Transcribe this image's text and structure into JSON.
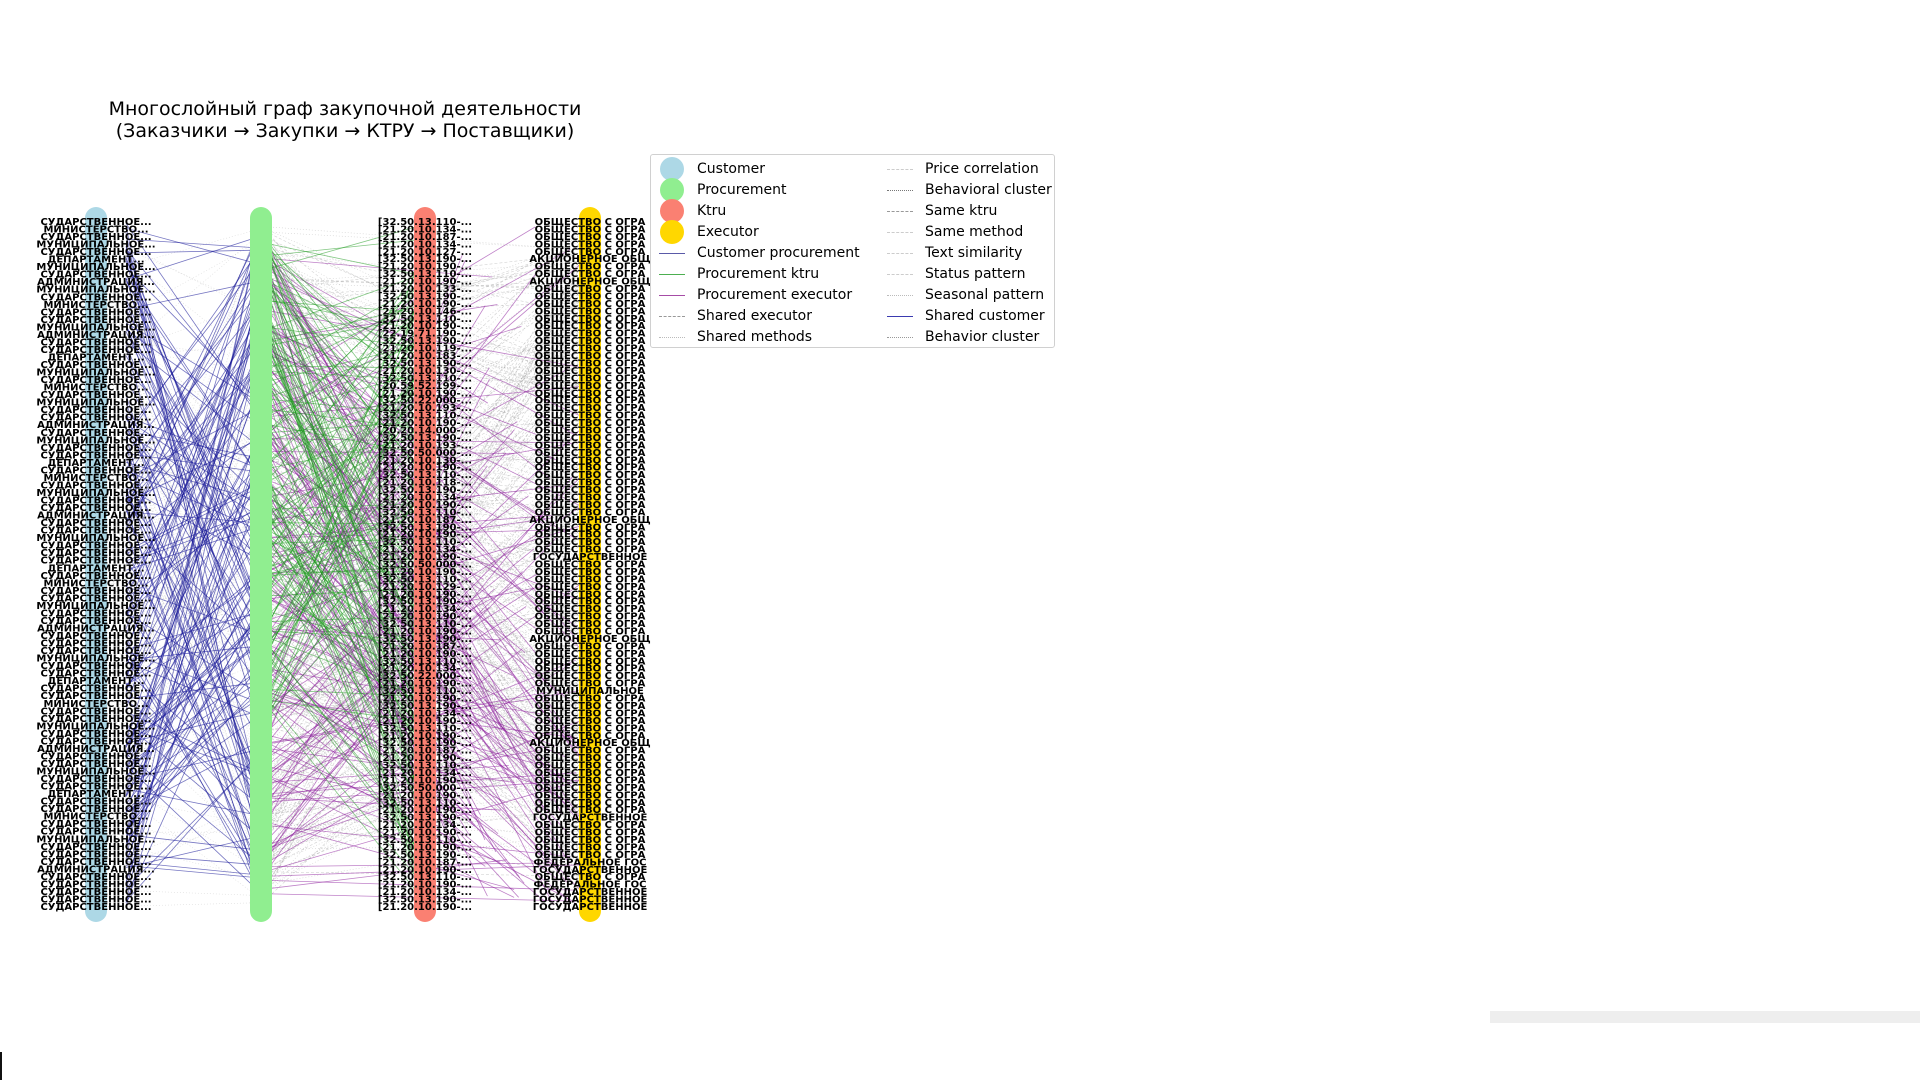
{
  "title": {
    "line1": "Многослойный граф закупочной деятельности",
    "line2": "(Заказчики → Закупки → КТРУ → Поставщики)"
  },
  "colors": {
    "customer": "#add8e6",
    "procurement": "#90ee90",
    "ktru": "#fa8072",
    "executor": "#ffd700",
    "customer_edge": "#1a1a9a",
    "ktru_edge": "#1f9a1f",
    "executor_edge": "#8b1a9a",
    "similarity_edge": "#9a9a9a"
  },
  "legend": [
    {
      "label": "Customer",
      "kind": "dot",
      "color": "#add8e6"
    },
    {
      "label": "Procurement",
      "kind": "dot",
      "color": "#90ee90"
    },
    {
      "label": "Ktru",
      "kind": "dot",
      "color": "#fa8072"
    },
    {
      "label": "Executor",
      "kind": "dot",
      "color": "#ffd700"
    },
    {
      "label": "Customer procurement",
      "kind": "line",
      "color": "#5a5aa8",
      "style": "solid"
    },
    {
      "label": "Procurement ktru",
      "kind": "line",
      "color": "#4caf50",
      "style": "solid"
    },
    {
      "label": "Procurement executor",
      "kind": "line",
      "color": "#a64ca6",
      "style": "solid"
    },
    {
      "label": "Shared executor",
      "kind": "line",
      "color": "#999999",
      "style": "dashed"
    },
    {
      "label": "Shared methods",
      "kind": "line",
      "color": "#bbbbbb",
      "style": "dotted"
    },
    {
      "label": "Price correlation",
      "kind": "line",
      "color": "#cccccc",
      "style": "dashed"
    },
    {
      "label": "Behavioral cluster",
      "kind": "line",
      "color": "#777777",
      "style": "dotted"
    },
    {
      "label": "Same ktru",
      "kind": "line",
      "color": "#999999",
      "style": "dashed"
    },
    {
      "label": "Same method",
      "kind": "line",
      "color": "#cccccc",
      "style": "dashed"
    },
    {
      "label": "Text similarity",
      "kind": "line",
      "color": "#cccccc",
      "style": "dashed"
    },
    {
      "label": "Status pattern",
      "kind": "line",
      "color": "#cccccc",
      "style": "dashed"
    },
    {
      "label": "Seasonal pattern",
      "kind": "line",
      "color": "#bbbbbb",
      "style": "dotted"
    },
    {
      "label": "Shared customer",
      "kind": "line",
      "color": "#3a3ab0",
      "style": "solid"
    },
    {
      "label": "Behavior cluster",
      "kind": "line",
      "color": "#999999",
      "style": "dotted"
    }
  ],
  "customer_labels": [
    "СУДАРСТВЕННОЕ...",
    "МИНИСТЕРСТВО...",
    "СУДАРСТВЕННОЕ...",
    "МУНИЦИПАЛЬНОЕ...",
    "СУДАРСТВЕННОЕ...",
    "ДЕПАРТАМЕНТ...",
    "МУНИЦИПАЛЬНОЕ...",
    "СУДАРСТВЕННОЕ...",
    "АДМИНИСТРАЦИЯ...",
    "МУНИЦИПАЛЬНОЕ...",
    "СУДАРСТВЕННОЕ...",
    "МИНИСТЕРСТВО...",
    "СУДАРСТВЕННОЕ...",
    "СУДАРСТВЕННОЕ...",
    "МУНИЦИПАЛЬНОЕ...",
    "АДМИНИСТРАЦИЯ...",
    "СУДАРСТВЕННОЕ...",
    "СУДАРСТВЕННОЕ...",
    "ДЕПАРТАМЕНТ...",
    "СУДАРСТВЕННОЕ...",
    "МУНИЦИПАЛЬНОЕ...",
    "СУДАРСТВЕННОЕ...",
    "МИНИСТЕРСТВО...",
    "СУДАРСТВЕННОЕ...",
    "МУНИЦИПАЛЬНОЕ...",
    "СУДАРСТВЕННОЕ...",
    "СУДАРСТВЕННОЕ...",
    "АДМИНИСТРАЦИЯ...",
    "СУДАРСТВЕННОЕ...",
    "МУНИЦИПАЛЬНОЕ...",
    "СУДАРСТВЕННОЕ...",
    "СУДАРСТВЕННОЕ...",
    "ДЕПАРТАМЕНТ...",
    "СУДАРСТВЕННОЕ...",
    "МИНИСТЕРСТВО...",
    "СУДАРСТВЕННОЕ...",
    "МУНИЦИПАЛЬНОЕ...",
    "СУДАРСТВЕННОЕ...",
    "СУДАРСТВЕННОЕ...",
    "АДМИНИСТРАЦИЯ...",
    "СУДАРСТВЕННОЕ...",
    "СУДАРСТВЕННОЕ...",
    "МУНИЦИПАЛЬНОЕ...",
    "СУДАРСТВЕННОЕ...",
    "СУДАРСТВЕННОЕ...",
    "СУДАРСТВЕННОЕ...",
    "ДЕПАРТАМЕНТ...",
    "СУДАРСТВЕННОЕ...",
    "МИНИСТЕРСТВО...",
    "СУДАРСТВЕННОЕ...",
    "СУДАРСТВЕННОЕ...",
    "МУНИЦИПАЛЬНОЕ...",
    "СУДАРСТВЕННОЕ...",
    "СУДАРСТВЕННОЕ...",
    "АДМИНИСТРАЦИЯ...",
    "СУДАРСТВЕННОЕ...",
    "СУДАРСТВЕННОЕ...",
    "СУДАРСТВЕННОЕ...",
    "МУНИЦИПАЛЬНОЕ...",
    "СУДАРСТВЕННОЕ...",
    "СУДАРСТВЕННОЕ...",
    "ДЕПАРТАМЕНТ...",
    "СУДАРСТВЕННОЕ...",
    "СУДАРСТВЕННОЕ...",
    "МИНИСТЕРСТВО...",
    "СУДАРСТВЕННОЕ...",
    "СУДАРСТВЕННОЕ...",
    "МУНИЦИПАЛЬНОЕ...",
    "СУДАРСТВЕННОЕ...",
    "СУДАРСТВЕННОЕ...",
    "АДМИНИСТРАЦИЯ...",
    "СУДАРСТВЕННОЕ...",
    "СУДАРСТВЕННОЕ...",
    "МУНИЦИПАЛЬНОЕ...",
    "СУДАРСТВЕННОЕ...",
    "СУДАРСТВЕННОЕ...",
    "ДЕПАРТАМЕНТ...",
    "СУДАРСТВЕННОЕ...",
    "СУДАРСТВЕННОЕ...",
    "МИНИСТЕРСТВО...",
    "СУДАРСТВЕННОЕ...",
    "СУДАРСТВЕННОЕ...",
    "МУНИЦИПАЛЬНОЕ...",
    "СУДАРСТВЕННОЕ...",
    "СУДАРСТВЕННОЕ...",
    "СУДАРСТВЕННОЕ...",
    "АДМИНИСТРАЦИЯ...",
    "СУДАРСТВЕННОЕ...",
    "СУДАРСТВЕННОЕ...",
    "СУДАРСТВЕННОЕ...",
    "СУДАРСТВЕННОЕ...",
    "СУДАРСТВЕННОЕ..."
  ],
  "ktru_labels": [
    "[32.50.13.110-...",
    "[21.20.10.134-...",
    "[21.20.10.187-...",
    "[21.20.10.134-...",
    "[21.20.10.127-...",
    "[32.50.13.190-...",
    "[21.20.10.190-...",
    "[32.50.13.110-...",
    "[21.20.10.190-...",
    "[21.20.10.133-...",
    "[32.50.13.190-...",
    "[21.20.10.190-...",
    "[21.20.10.146-...",
    "[32.50.13.110-...",
    "[21.20.10.190-...",
    "[22.19.71.190-...",
    "[32.50.13.190-...",
    "[21.20.10.119-...",
    "[21.20.10.183-...",
    "[32.50.13.190-...",
    "[21.20.10.130-...",
    "[32.50.13.110-...",
    "[20.59.52.199-...",
    "[21.20.10.190-...",
    "[32.50.22.000-...",
    "[21.20.10.193-...",
    "[32.50.13.110-...",
    "[21.20.10.190-...",
    "[20.20.14.000-...",
    "[32.50.13.190-...",
    "[21.20.10.193-...",
    "[32.50.50.000-...",
    "[21.20.10.130-...",
    "[21.20.10.190-...",
    "[32.50.13.110-...",
    "[21.20.10.118-...",
    "[32.50.13.190-...",
    "[21.20.10.134-...",
    "[21.20.10.190-...",
    "[32.50.13.110-...",
    "[21.20.10.187-...",
    "[32.50.13.190-...",
    "[21.20.10.190-...",
    "[32.50.13.110-...",
    "[21.20.10.134-...",
    "[21.20.10.190-...",
    "[32.50.50.000-...",
    "[21.20.10.190-...",
    "[32.50.13.110-...",
    "[21.20.10.129-...",
    "[21.20.10.190-...",
    "[32.50.13.190-...",
    "[21.20.10.134-...",
    "[21.20.10.190-...",
    "[32.50.13.110-...",
    "[21.20.10.190-...",
    "[32.50.13.190-...",
    "[21.20.10.187-...",
    "[21.20.10.190-...",
    "[32.50.13.110-...",
    "[21.20.10.134-...",
    "[32.50.22.000-...",
    "[21.20.10.190-...",
    "[32.50.13.110-...",
    "[21.20.10.190-...",
    "[32.50.13.190-...",
    "[21.20.10.134-...",
    "[21.20.10.190-...",
    "[32.50.13.110-...",
    "[21.20.10.190-...",
    "[32.50.13.190-...",
    "[21.20.10.187-...",
    "[21.20.10.190-...",
    "[32.50.13.110-...",
    "[21.20.10.134-...",
    "[21.20.10.190-...",
    "[32.50.50.000-...",
    "[21.20.10.190-...",
    "[32.50.13.110-...",
    "[21.20.10.190-...",
    "[32.50.13.190-...",
    "[21.20.10.134-...",
    "[21.20.10.190-...",
    "[32.50.13.110-...",
    "[21.20.10.190-...",
    "[32.50.13.190-...",
    "[21.20.10.187-...",
    "[21.20.10.190-...",
    "[32.50.13.110-...",
    "[21.20.10.190-...",
    "[21.20.10.134-...",
    "[32.50.13.190-...",
    "[21.20.10.190-..."
  ],
  "executor_labels": [
    "ОБЩЕСТВО С ОГРА",
    "ОБЩЕСТВО С ОГРА",
    "ОБЩЕСТВО С ОГРА",
    "ОБЩЕСТВО С ОГРА",
    "ОБЩЕСТВО С ОГРА",
    "АКЦИОНЕРНОЕ ОБЩ",
    "ОБЩЕСТВО С ОГРА",
    "ОБЩЕСТВО С ОГРА",
    "АКЦИОНЕРНОЕ ОБЩ",
    "ОБЩЕСТВО С ОГРА",
    "ОБЩЕСТВО С ОГРА",
    "ОБЩЕСТВО С ОГРА",
    "ОБЩЕСТВО С ОГРА",
    "ОБЩЕСТВО С ОГРА",
    "ОБЩЕСТВО С ОГРА",
    "ОБЩЕСТВО С ОГРА",
    "ОБЩЕСТВО С ОГРА",
    "ОБЩЕСТВО С ОГРА",
    "ОБЩЕСТВО С ОГРА",
    "ОБЩЕСТВО С ОГРА",
    "ОБЩЕСТВО С ОГРА",
    "ОБЩЕСТВО С ОГРА",
    "ОБЩЕСТВО С ОГРА",
    "ОБЩЕСТВО С ОГРА",
    "ОБЩЕСТВО С ОГРА",
    "ОБЩЕСТВО С ОГРА",
    "ОБЩЕСТВО С ОГРА",
    "ОБЩЕСТВО С ОГРА",
    "ОБЩЕСТВО С ОГРА",
    "ОБЩЕСТВО С ОГРА",
    "ОБЩЕСТВО С ОГРА",
    "ОБЩЕСТВО С ОГРА",
    "ОБЩЕСТВО С ОГРА",
    "ОБЩЕСТВО С ОГРА",
    "ОБЩЕСТВО С ОГРА",
    "ОБЩЕСТВО С ОГРА",
    "ОБЩЕСТВО С ОГРА",
    "ОБЩЕСТВО С ОГРА",
    "ОБЩЕСТВО С ОГРА",
    "ОБЩЕСТВО С ОГРА",
    "АКЦИОНЕРНОЕ ОБЩ",
    "ОБЩЕСТВО С ОГРА",
    "ОБЩЕСТВО С ОГРА",
    "ОБЩЕСТВО С ОГРА",
    "ОБЩЕСТВО С ОГРА",
    "ГОСУДАРСТВЕННОЕ",
    "ОБЩЕСТВО С ОГРА",
    "ОБЩЕСТВО С ОГРА",
    "ОБЩЕСТВО С ОГРА",
    "ОБЩЕСТВО С ОГРА",
    "ОБЩЕСТВО С ОГРА",
    "ОБЩЕСТВО С ОГРА",
    "ОБЩЕСТВО С ОГРА",
    "ОБЩЕСТВО С ОГРА",
    "ОБЩЕСТВО С ОГРА",
    "ОБЩЕСТВО С ОГРА",
    "АКЦИОНЕРНОЕ ОБЩ",
    "ОБЩЕСТВО С ОГРА",
    "ОБЩЕСТВО С ОГРА",
    "ОБЩЕСТВО С ОГРА",
    "ОБЩЕСТВО С ОГРА",
    "ОБЩЕСТВО С ОГРА",
    "ОБЩЕСТВО С ОГРА",
    "МУНИЦИПАЛЬНОЕ",
    "ОБЩЕСТВО С ОГРА",
    "ОБЩЕСТВО С ОГРА",
    "ОБЩЕСТВО С ОГРА",
    "ОБЩЕСТВО С ОГРА",
    "ОБЩЕСТВО С ОГРА",
    "ОБЩЕСТВО С ОГРА",
    "АКЦИОНЕРНОЕ ОБЩ",
    "ОБЩЕСТВО С ОГРА",
    "ОБЩЕСТВО С ОГРА",
    "ОБЩЕСТВО С ОГРА",
    "ОБЩЕСТВО С ОГРА",
    "ОБЩЕСТВО С ОГРА",
    "ОБЩЕСТВО С ОГРА",
    "ОБЩЕСТВО С ОГРА",
    "ОБЩЕСТВО С ОГРА",
    "ОБЩЕСТВО С ОГРА",
    "ГОСУДАРСТВЕННОЕ",
    "ОБЩЕСТВО С ОГРА",
    "ОБЩЕСТВО С ОГРА",
    "ОБЩЕСТВО С ОГРА",
    "ОБЩЕСТВО С ОГРА",
    "ОБЩЕСТВО С ОГРА",
    "ФЕДЕРАЛЬНОЕ ГОС",
    "ГОСУДАРСТВЕННОЕ",
    "ОБЩЕСТВО С ОГРА",
    "ФЕДЕРАЛЬНОЕ ГОС",
    "ГОСУДАРСТВЕННОЕ",
    "ГОСУДАРСТВЕННОЕ",
    "ГОСУДАРСТВЕННОЕ"
  ]
}
